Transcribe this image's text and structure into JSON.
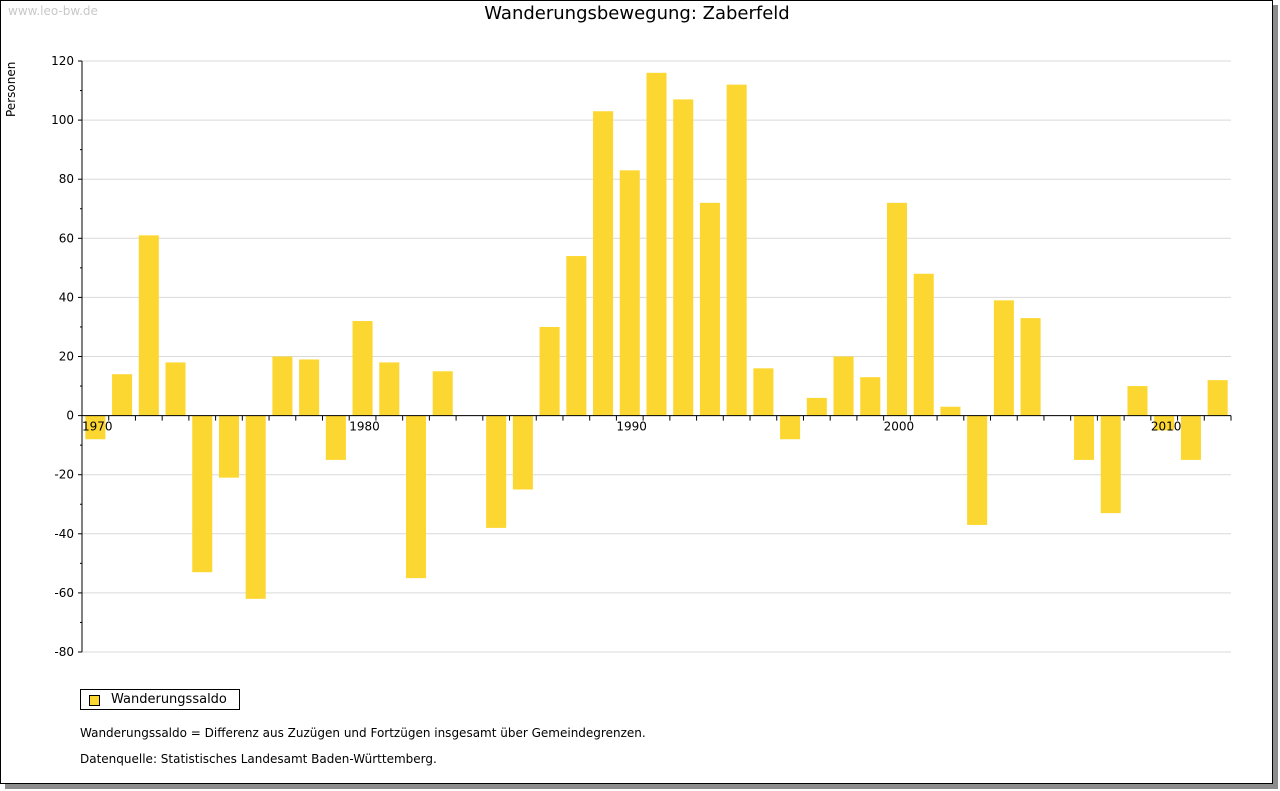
{
  "watermark": "www.leo-bw.de",
  "colors": {
    "bar": "#fdd731",
    "grid": "#d9d9d9",
    "axis": "#000000"
  },
  "footnotes": {
    "definition": "Wanderungssaldo = Differenz aus Zuzügen und Fortzügen insgesamt über Gemeindegrenzen.",
    "source": "Datenquelle: Statistisches Landesamt Baden-Württemberg."
  },
  "chart_data": {
    "type": "bar",
    "title": "Wanderungsbewegung: Zaberfeld",
    "ylabel": "Personen",
    "xlabel": "",
    "ylim": [
      -80,
      120
    ],
    "yticks": [
      -80,
      -60,
      -40,
      -20,
      0,
      20,
      40,
      60,
      80,
      100,
      120
    ],
    "xticks": [
      1970,
      1980,
      1990,
      2000,
      2010
    ],
    "grid": true,
    "legend_position": "bottom-left",
    "categories": [
      1970,
      1971,
      1972,
      1973,
      1974,
      1975,
      1976,
      1977,
      1978,
      1979,
      1980,
      1981,
      1982,
      1983,
      1984,
      1985,
      1986,
      1987,
      1988,
      1989,
      1990,
      1991,
      1992,
      1993,
      1994,
      1995,
      1996,
      1997,
      1998,
      1999,
      2000,
      2001,
      2002,
      2003,
      2004,
      2005,
      2006,
      2007,
      2008,
      2009,
      2010,
      2011,
      2012
    ],
    "series": [
      {
        "name": "Wanderungssaldo",
        "values": [
          -8,
          14,
          61,
          18,
          -53,
          -21,
          -62,
          20,
          19,
          -15,
          32,
          18,
          -55,
          15,
          0,
          -38,
          -25,
          30,
          54,
          103,
          83,
          116,
          107,
          72,
          112,
          16,
          -8,
          6,
          20,
          13,
          72,
          48,
          3,
          -37,
          39,
          33,
          0,
          -15,
          -33,
          10,
          -5,
          -15,
          12
        ]
      }
    ]
  }
}
